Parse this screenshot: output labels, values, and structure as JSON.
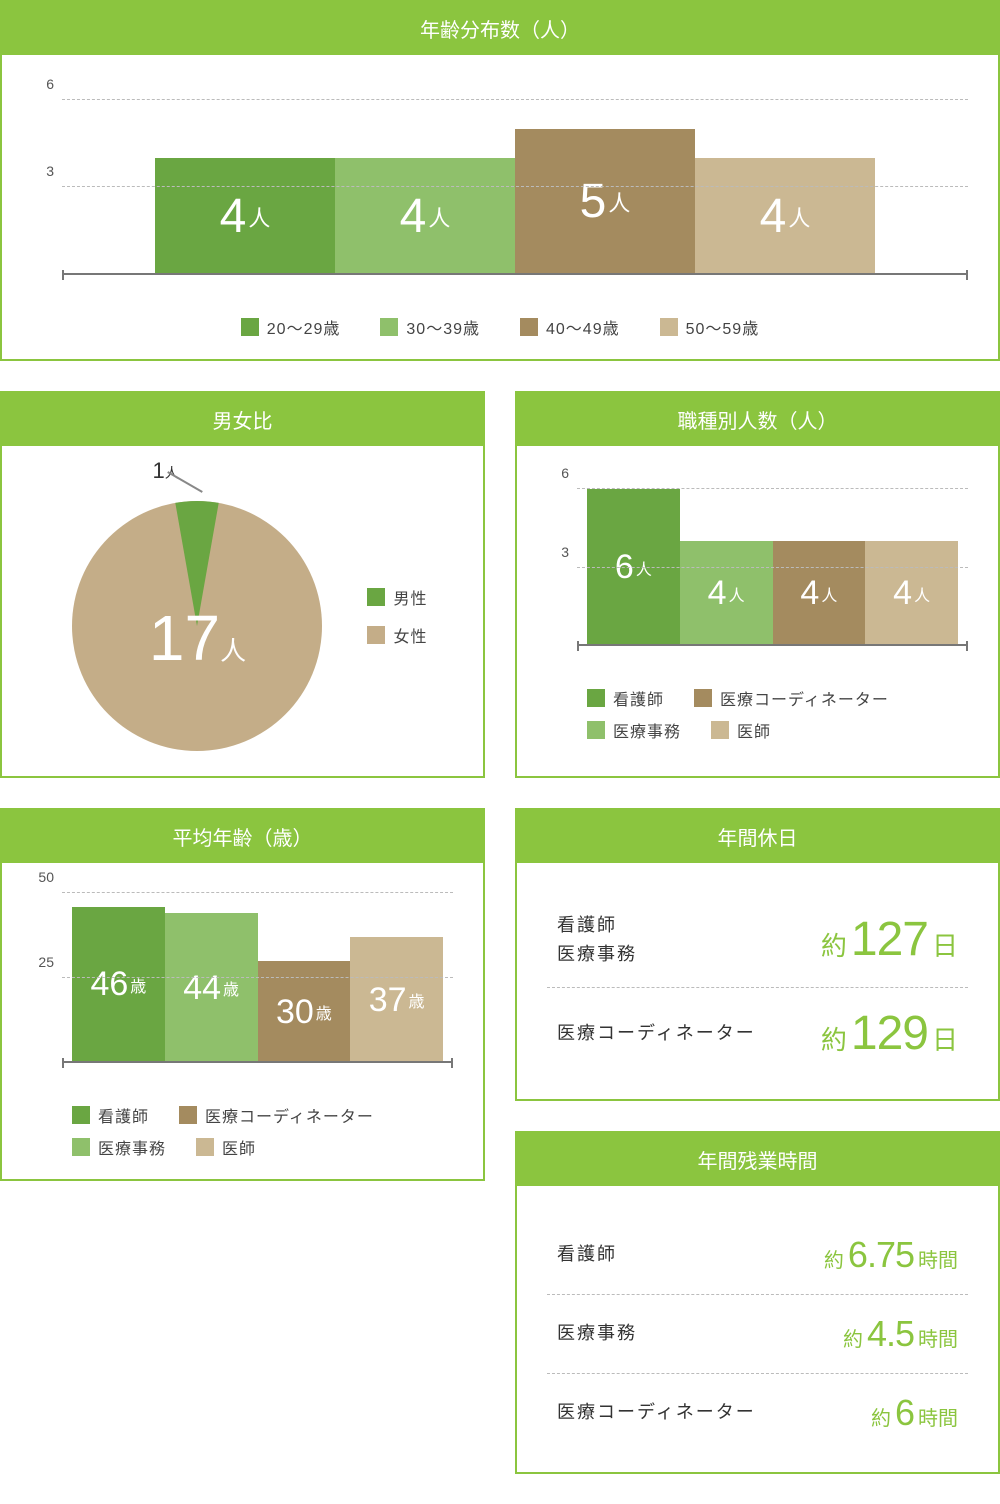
{
  "colors": {
    "accent": "#8bc53f",
    "series": [
      "#6aa642",
      "#8fc06b",
      "#a48b5f",
      "#cbb893"
    ],
    "grid": "#bbbbbb",
    "text": "#444444"
  },
  "age_dist": {
    "title": "年齢分布数（人）",
    "type": "bar",
    "ylim": [
      0,
      6.5
    ],
    "yticks": [
      3,
      6
    ],
    "categories": [
      "20～29歳",
      "30～39歳",
      "40～49歳",
      "50～59歳"
    ],
    "values": [
      4,
      4,
      5,
      4
    ],
    "unit": "人",
    "bar_colors": [
      "#6aa642",
      "#8fc06b",
      "#a48b5f",
      "#cbb893"
    ]
  },
  "gender": {
    "title": "男女比",
    "type": "pie",
    "male_label": "男性",
    "female_label": "女性",
    "male_count": 1,
    "female_count": 17,
    "unit": "人",
    "male_color": "#6aa642",
    "female_color": "#c4ad88"
  },
  "job_count": {
    "title": "職種別人数（人）",
    "type": "bar",
    "ylim": [
      0,
      6.5
    ],
    "yticks": [
      3,
      6
    ],
    "categories": [
      "看護師",
      "医療事務",
      "医療コーディネーター",
      "医師"
    ],
    "values": [
      6,
      4,
      4,
      4
    ],
    "unit": "人",
    "bar_colors": [
      "#6aa642",
      "#8fc06b",
      "#a48b5f",
      "#cbb893"
    ]
  },
  "avg_age": {
    "title": "平均年齢（歳）",
    "type": "bar",
    "ylim": [
      0,
      50
    ],
    "yticks": [
      25,
      50
    ],
    "categories": [
      "看護師",
      "医療事務",
      "医療コーディネーター",
      "医師"
    ],
    "values": [
      46,
      44,
      30,
      37
    ],
    "unit": "歳",
    "bar_colors": [
      "#6aa642",
      "#8fc06b",
      "#a48b5f",
      "#cbb893"
    ]
  },
  "holidays": {
    "title": "年間休日",
    "rows": [
      {
        "label": "看護師\n医療事務",
        "prefix": "約",
        "value": "127",
        "suffix": "日"
      },
      {
        "label": "医療コーディネーター",
        "prefix": "約",
        "value": "129",
        "suffix": "日"
      }
    ]
  },
  "overtime": {
    "title": "年間残業時間",
    "rows": [
      {
        "label": "看護師",
        "prefix": "約",
        "value": "6.75",
        "suffix": "時間"
      },
      {
        "label": "医療事務",
        "prefix": "約",
        "value": "4.5",
        "suffix": "時間"
      },
      {
        "label": "医療コーディネーター",
        "prefix": "約",
        "value": "6",
        "suffix": "時間"
      }
    ]
  }
}
